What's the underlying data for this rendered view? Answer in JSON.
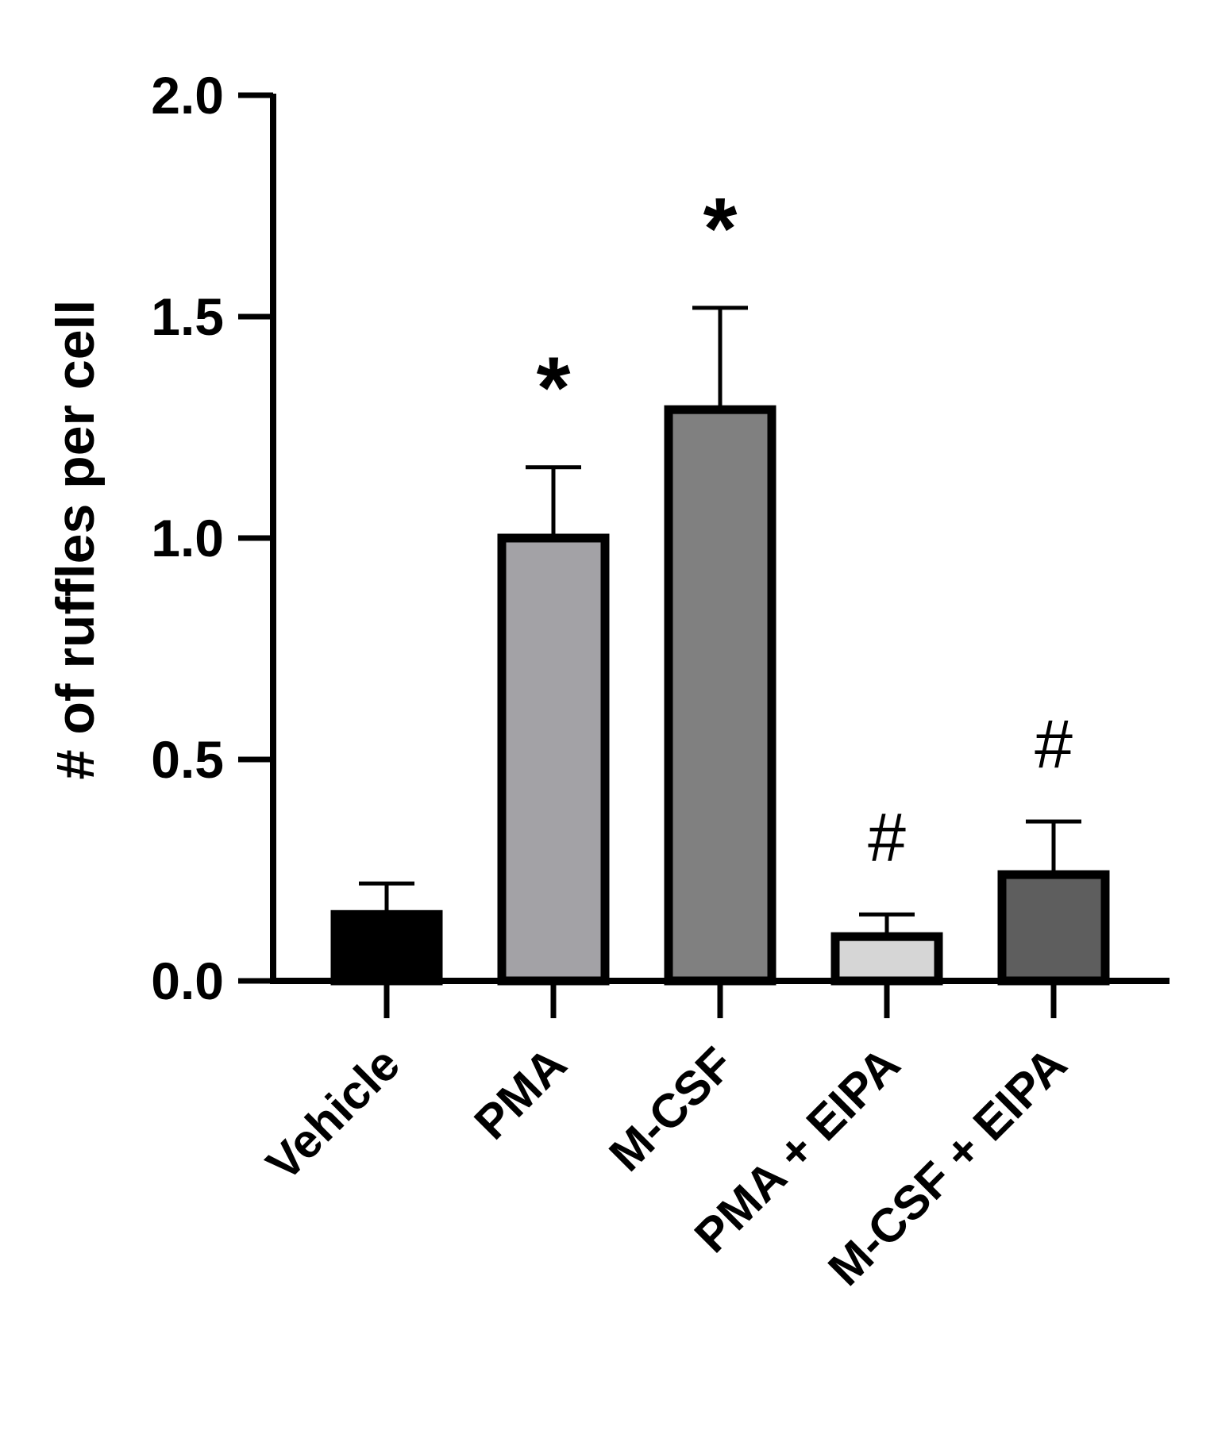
{
  "chart_data": {
    "type": "bar",
    "ylabel": "# of ruffles per cell",
    "xlabel": "",
    "ylim": [
      0,
      2.0
    ],
    "yticks": [
      "0.0",
      "0.5",
      "1.0",
      "1.5",
      "2.0"
    ],
    "categories": [
      "Vehicle",
      "PMA",
      "M-CSF",
      "PMA + EIPA",
      "M-CSF + EIPA"
    ],
    "values": [
      0.15,
      1.0,
      1.29,
      0.1,
      0.24
    ],
    "errors": [
      0.07,
      0.16,
      0.23,
      0.05,
      0.12
    ],
    "annotations": [
      "",
      "*",
      "*",
      "#",
      "#"
    ],
    "colors": [
      "#000000",
      "#a3a2a6",
      "#808080",
      "#d6d6d6",
      "#5e5e5e"
    ],
    "grid": false
  }
}
